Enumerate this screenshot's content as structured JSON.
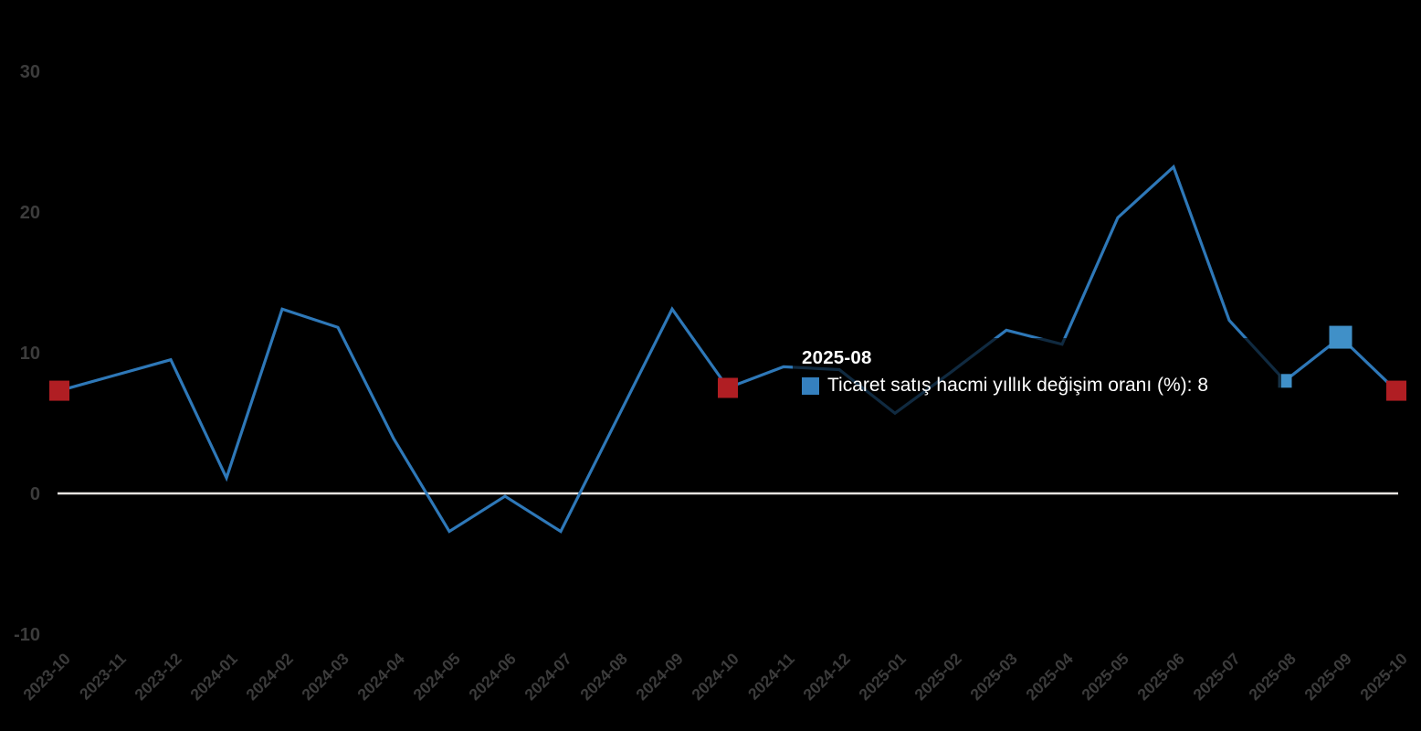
{
  "chart_data": {
    "type": "line",
    "x": [
      "2023-10",
      "2023-11",
      "2023-12",
      "2024-01",
      "2024-02",
      "2024-03",
      "2024-04",
      "2024-05",
      "2024-06",
      "2024-07",
      "2024-08",
      "2024-09",
      "2024-10",
      "2024-11",
      "2024-12",
      "2025-01",
      "2025-02",
      "2025-03",
      "2025-04",
      "2025-05",
      "2025-06",
      "2025-07",
      "2025-08",
      "2025-09",
      "2025-10"
    ],
    "series": [
      {
        "name": "Ticaret satış hacmi yıllık değişim oranı (%)",
        "values": [
          7.3,
          8.4,
          9.5,
          1.1,
          13.1,
          11.8,
          3.9,
          -2.7,
          -0.2,
          -2.7,
          5.2,
          13.1,
          7.5,
          9.0,
          8.8,
          5.7,
          8.6,
          11.6,
          10.6,
          19.6,
          23.2,
          12.3,
          8,
          11.1,
          7.3
        ]
      }
    ],
    "y_ticks": [
      30,
      20,
      10,
      0,
      -10
    ],
    "ylim": [
      -13,
      33
    ],
    "grid": false,
    "legend_position": "tooltip-only",
    "markers": {
      "red_square_months": [
        "2023-10",
        "2024-10",
        "2025-10"
      ],
      "small_blue_square_month": "2025-08",
      "large_blue_square_month": "2025-09"
    }
  },
  "tooltip": {
    "title": "2025-08",
    "series_label": "Ticaret satış hacmi yıllık değişim oranı (%)",
    "value": "8",
    "line_text": "Ticaret satış hacmi yıllık değişim oranı (%): 8"
  },
  "colors": {
    "background": "#000000",
    "line": "#2E78B8",
    "red_marker": "#B01E23",
    "blue_marker": "#4090C8",
    "legend_swatch": "#3580BE",
    "axis_label": "#3C3C3C",
    "zero_line": "#E7E4E1",
    "tooltip_text": "#FFFFFF"
  }
}
